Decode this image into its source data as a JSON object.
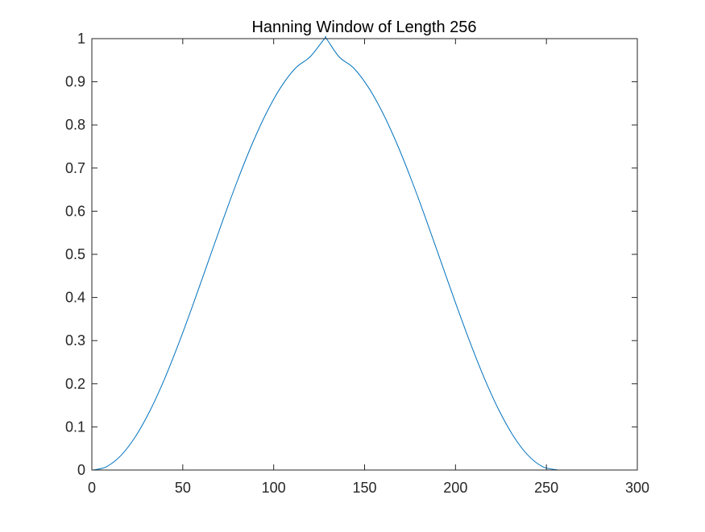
{
  "chart_data": {
    "type": "line",
    "title": "Hanning Window of Length 256",
    "xlabel": "",
    "ylabel": "",
    "xlim": [
      0,
      300
    ],
    "ylim": [
      0,
      1
    ],
    "x_ticks": [
      0,
      50,
      100,
      150,
      200,
      250,
      300
    ],
    "y_ticks": [
      0,
      0.1,
      0.2,
      0.3,
      0.4,
      0.5,
      0.6,
      0.7,
      0.8,
      0.9,
      1
    ],
    "x_tick_labels": [
      "0",
      "50",
      "100",
      "150",
      "200",
      "250",
      "300"
    ],
    "y_tick_labels": [
      "0",
      "0.1",
      "0.2",
      "0.3",
      "0.4",
      "0.5",
      "0.6",
      "0.7",
      "0.8",
      "0.9",
      "1"
    ],
    "grid": false,
    "legend": "none",
    "series": [
      {
        "color": "#0072BD",
        "x": [
          1,
          8,
          16,
          24,
          32,
          40,
          48,
          56,
          64,
          72,
          80,
          88,
          96,
          104,
          112,
          120,
          128,
          129,
          136,
          144,
          152,
          160,
          168,
          176,
          184,
          192,
          200,
          208,
          216,
          224,
          232,
          240,
          248,
          256
        ],
        "y": [
          0.0002,
          0.0076,
          0.0337,
          0.0777,
          0.1378,
          0.2115,
          0.296,
          0.3877,
          0.4831,
          0.5785,
          0.67,
          0.7542,
          0.8277,
          0.8877,
          0.9317,
          0.9578,
          1.0,
          1.0,
          0.9578,
          0.9317,
          0.8877,
          0.8277,
          0.7542,
          0.67,
          0.5785,
          0.4831,
          0.3877,
          0.296,
          0.2115,
          0.1378,
          0.0777,
          0.0337,
          0.0076,
          0.0002
        ]
      }
    ]
  },
  "colors": {
    "line": "#0072BD",
    "axes": "#262626",
    "background": "#ffffff"
  }
}
